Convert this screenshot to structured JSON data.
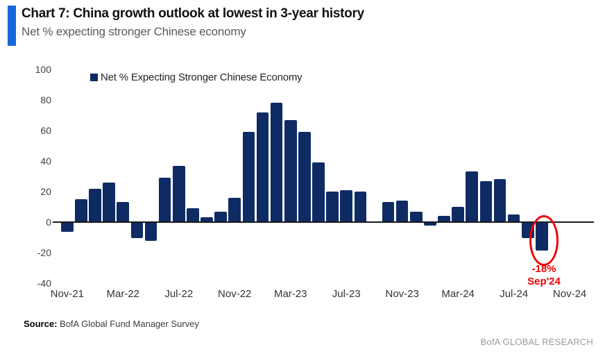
{
  "header": {
    "title": "Chart 7: China growth outlook at lowest in 3-year history",
    "subtitle": "Net % expecting stronger Chinese economy",
    "accent_color": "#1666DB"
  },
  "legend": {
    "label": "Net % Expecting Stronger Chinese Economy",
    "swatch_color": "#0E2B64"
  },
  "chart_data": {
    "type": "bar",
    "title": "Net % Expecting Stronger Chinese Economy",
    "xlabel": "",
    "ylabel": "Net %",
    "ylim": [
      -40,
      100
    ],
    "yticks": [
      100,
      80,
      60,
      40,
      20,
      0,
      -20,
      -40
    ],
    "grid": false,
    "legend_position": "top",
    "bar_color": "#0E2B64",
    "categories": [
      "Nov-21",
      "Dec-21",
      "Jan-22",
      "Feb-22",
      "Mar-22",
      "Apr-22",
      "May-22",
      "Jun-22",
      "Jul-22",
      "Aug-22",
      "Sep-22",
      "Oct-22",
      "Nov-22",
      "Dec-22",
      "Jan-23",
      "Feb-23",
      "Mar-23",
      "Apr-23",
      "May-23",
      "Jun-23",
      "Jul-23",
      "Aug-23",
      "Sep-23",
      "Oct-23",
      "Nov-23",
      "Dec-23",
      "Jan-24",
      "Feb-24",
      "Mar-24",
      "Apr-24",
      "May-24",
      "Jun-24",
      "Jul-24",
      "Aug-24",
      "Sep-24"
    ],
    "values": [
      -6,
      15,
      22,
      26,
      13,
      -10,
      -12,
      29,
      37,
      9,
      3,
      7,
      16,
      59,
      72,
      78,
      67,
      59,
      39,
      20,
      21,
      20,
      0,
      13,
      14,
      7,
      -2,
      4,
      10,
      33,
      27,
      28,
      5,
      -10,
      -18
    ],
    "xtick_labels": [
      "Nov-21",
      "Mar-22",
      "Jul-22",
      "Nov-22",
      "Mar-23",
      "Jul-23",
      "Nov-23",
      "Mar-24",
      "Jul-24",
      "Nov-24"
    ],
    "xtick_indices": [
      0,
      4,
      8,
      12,
      16,
      20,
      24,
      28,
      32,
      36
    ]
  },
  "annotation": {
    "value_label": "-18%",
    "date_label": "Sep'24",
    "target_month": "Sep-24",
    "color": "#EE0000"
  },
  "footer": {
    "source_label": "Source:",
    "source_text": " BofA Global Fund Manager Survey",
    "branding": "BofA GLOBAL RESEARCH"
  }
}
